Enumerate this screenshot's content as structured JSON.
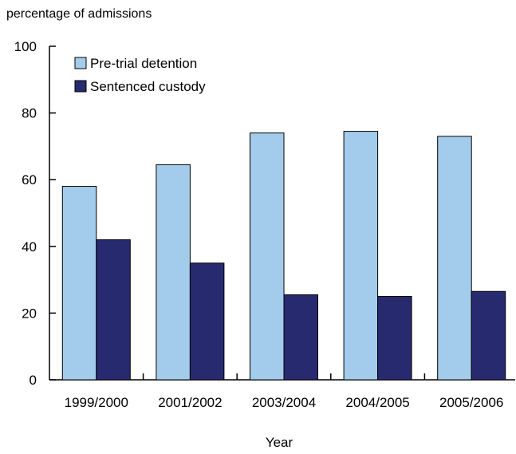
{
  "chart_data": {
    "type": "bar",
    "ylabel": "percentage of admissions",
    "xlabel": "Year",
    "ylim": [
      0,
      100
    ],
    "yticks": [
      0,
      20,
      40,
      60,
      80,
      100
    ],
    "grid": false,
    "legend_position": "top-left",
    "categories": [
      "1999/2000",
      "2001/2002",
      "2003/2004",
      "2004/2005",
      "2005/2006"
    ],
    "series": [
      {
        "name": "Pre-trial detention",
        "color": "#a3cbeb",
        "values": [
          58,
          64.5,
          74,
          74.5,
          73
        ]
      },
      {
        "name": "Sentenced custody",
        "color": "#282a70",
        "values": [
          42,
          35,
          25.5,
          25,
          26.5
        ]
      }
    ]
  }
}
